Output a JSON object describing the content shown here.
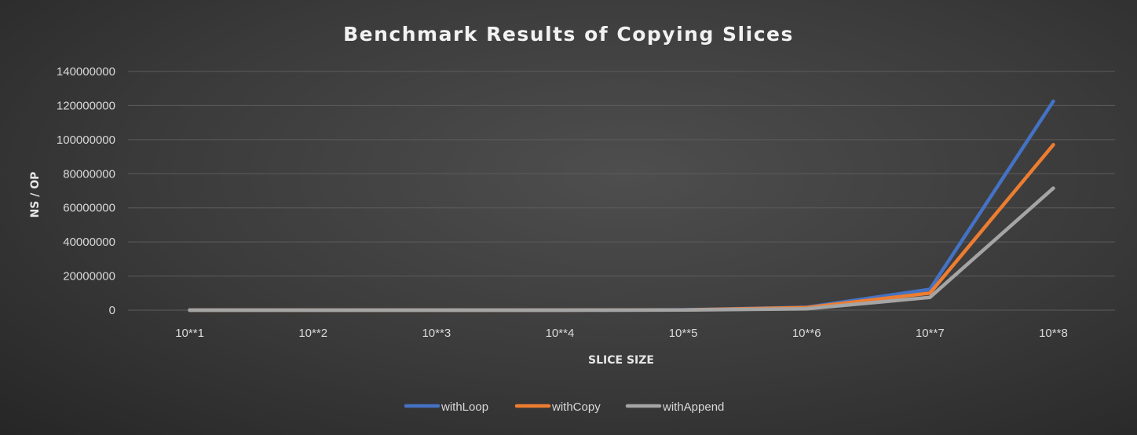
{
  "chart_data": {
    "type": "line",
    "title": "Benchmark Results of Copying Slices",
    "xlabel": "SLICE SIZE",
    "ylabel": "NS / OP",
    "categories": [
      "10**1",
      "10**2",
      "10**3",
      "10**4",
      "10**5",
      "10**6",
      "10**7",
      "10**8"
    ],
    "ylim": [
      0,
      140000000
    ],
    "yticks": [
      "0",
      "20000000",
      "40000000",
      "60000000",
      "80000000",
      "100000000",
      "120000000",
      "140000000"
    ],
    "grid": true,
    "legend_position": "bottom",
    "series": [
      {
        "name": "withLoop",
        "color": "#4472C4",
        "values": [
          20,
          200,
          2000,
          20000,
          200000,
          1700000,
          12200000,
          122500000
        ]
      },
      {
        "name": "withCopy",
        "color": "#ED7D31",
        "values": [
          15,
          150,
          1500,
          15000,
          150000,
          1500000,
          10000000,
          97000000
        ]
      },
      {
        "name": "withAppend",
        "color": "#A5A5A5",
        "values": [
          10,
          100,
          1000,
          10000,
          100000,
          800000,
          7500000,
          71500000
        ]
      }
    ]
  }
}
